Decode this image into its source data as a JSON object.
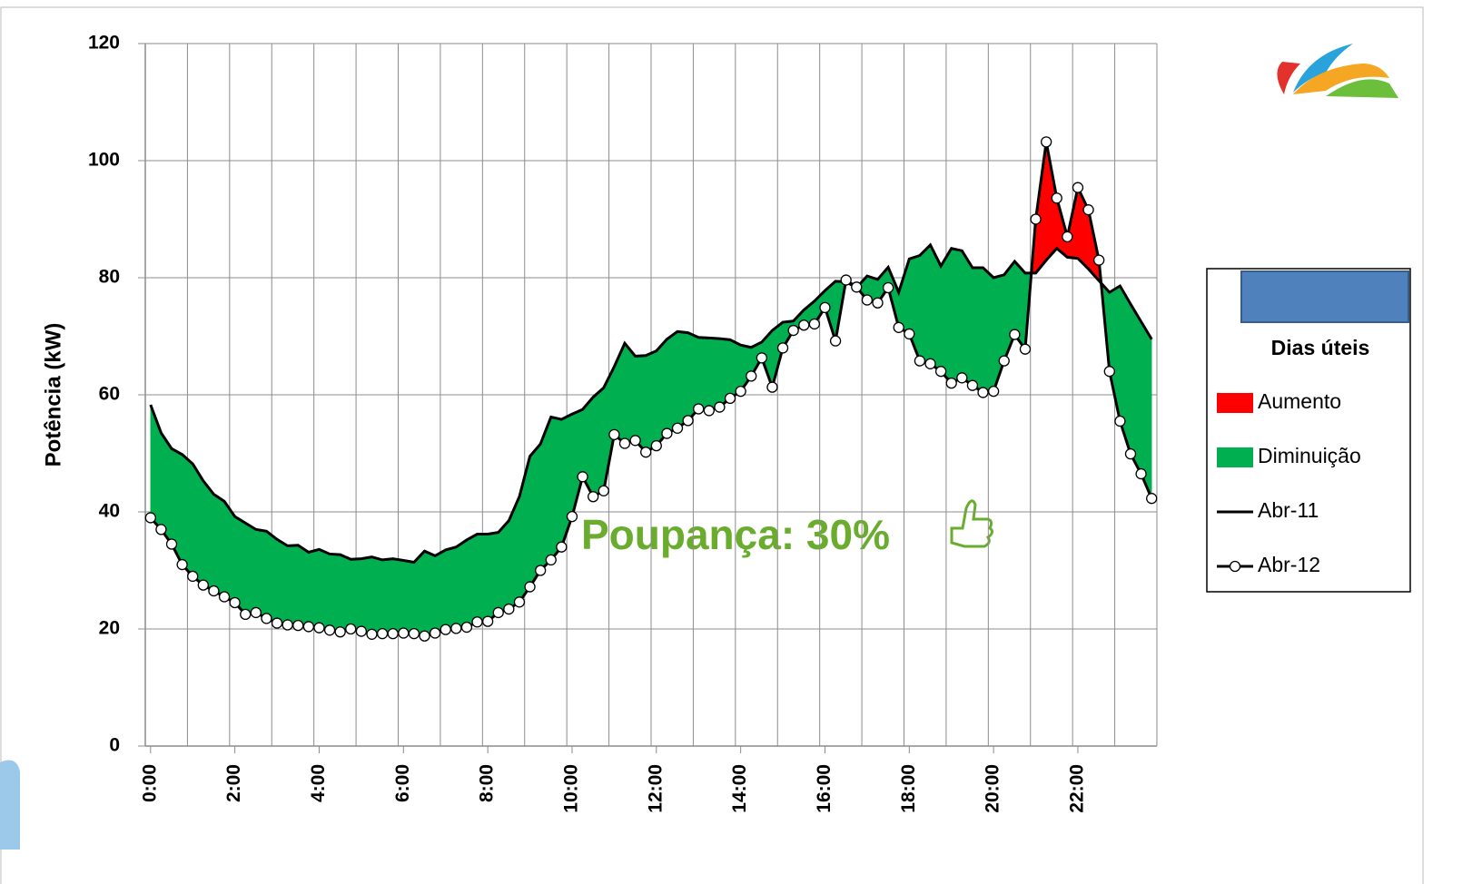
{
  "chart_data": {
    "type": "area-difference",
    "y_label": "Potência (kW)",
    "annotation": "Poupança: 30%",
    "ylim": [
      0,
      120
    ],
    "yticks": [
      0,
      20,
      40,
      60,
      80,
      100,
      120
    ],
    "grid": true,
    "categories": [
      "0:00",
      null,
      null,
      null,
      null,
      null,
      null,
      null,
      "2:00",
      null,
      null,
      null,
      null,
      null,
      null,
      null,
      "4:00",
      null,
      null,
      null,
      null,
      null,
      null,
      null,
      "6:00",
      null,
      null,
      null,
      null,
      null,
      null,
      null,
      "8:00",
      null,
      null,
      null,
      null,
      null,
      null,
      null,
      "10:00",
      null,
      null,
      null,
      null,
      null,
      null,
      null,
      "12:00",
      null,
      null,
      null,
      null,
      null,
      null,
      null,
      "14:00",
      null,
      null,
      null,
      null,
      null,
      null,
      null,
      "16:00",
      null,
      null,
      null,
      null,
      null,
      null,
      null,
      "18:00",
      null,
      null,
      null,
      null,
      null,
      null,
      null,
      "20:00",
      null,
      null,
      null,
      null,
      null,
      null,
      null,
      "22:00",
      null,
      null,
      null,
      null,
      null,
      null,
      null
    ],
    "series": [
      {
        "name": "Abr-11",
        "color": "#000000",
        "marker": false,
        "values": [
          58.3,
          53.5,
          50.8,
          49.8,
          48.2,
          45.3,
          43,
          41.8,
          39.2,
          38.1,
          37,
          36.7,
          35.3,
          34.2,
          34.3,
          33.1,
          33.6,
          32.8,
          32.7,
          31.9,
          32,
          32.3,
          31.8,
          32,
          31.7,
          31.4,
          33.3,
          32.5,
          33.5,
          34,
          35.2,
          36.2,
          36.2,
          36.5,
          38.5,
          42.6,
          49.5,
          51.6,
          56.2,
          55.8,
          56.7,
          57.5,
          59.6,
          61.2,
          64.8,
          68.8,
          66.6,
          66.7,
          67.5,
          69.5,
          70.8,
          70.6,
          69.8,
          69.7,
          69.6,
          69.4,
          68.5,
          68.1,
          69,
          71,
          72.4,
          72.6,
          74.5,
          76,
          77.8,
          79.4,
          79.3,
          78.3,
          80.3,
          79.7,
          81.8,
          77.5,
          83.2,
          83.8,
          85.6,
          82,
          85,
          84.6,
          81.7,
          81.7,
          80,
          80.5,
          82.8,
          80.8,
          80.8,
          83,
          85,
          83.5,
          83.3,
          81.5,
          79.5,
          77.5,
          78.6,
          75.5,
          72.5,
          69.5
        ]
      },
      {
        "name": "Abr-12",
        "color": "#000000",
        "marker": true,
        "values": [
          39,
          37,
          34.5,
          31,
          29,
          27.5,
          26.5,
          25.5,
          24.5,
          22.5,
          22.8,
          21.8,
          21,
          20.7,
          20.6,
          20.4,
          20.2,
          19.8,
          19.5,
          20,
          19.6,
          19.1,
          19.2,
          19.2,
          19.3,
          19.2,
          18.8,
          19.3,
          19.9,
          20.1,
          20.3,
          21.2,
          21.3,
          22.8,
          23.4,
          24.6,
          27.2,
          30,
          31.8,
          34,
          39.2,
          46,
          42.6,
          43.6,
          53.2,
          51.7,
          52.2,
          50.2,
          51.3,
          53.4,
          54.3,
          55.6,
          57.6,
          57.3,
          57.9,
          59.4,
          60.6,
          63.2,
          66.3,
          61.3,
          68,
          71,
          71.9,
          72.1,
          74.9,
          69.2,
          79.6,
          78.4,
          76.2,
          75.7,
          78.3,
          71.5,
          70.4,
          65.8,
          65.3,
          64,
          62,
          62.9,
          61.6,
          60.4,
          60.6,
          65.8,
          70.3,
          67.8,
          90,
          103.2,
          93.6,
          87,
          95.4,
          91.6,
          83,
          64,
          55.5,
          49.9,
          46.5,
          42.3
        ]
      }
    ],
    "legend": {
      "title": "Dias úteis",
      "position": "right",
      "fill_entries": [
        {
          "name": "Aumento",
          "color": "#ff0000"
        },
        {
          "name": "Diminuição",
          "color": "#00b050"
        }
      ]
    }
  }
}
